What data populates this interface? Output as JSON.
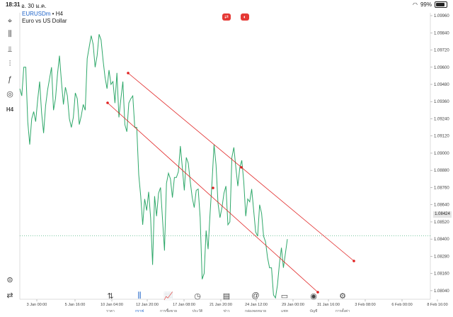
{
  "status": {
    "time": "18:31",
    "date": "อ. 30 ม.ค.",
    "battery": "99%"
  },
  "symbol": {
    "name": "EURUSDm",
    "timeframe": "H4",
    "description": "Euro vs US Dollar"
  },
  "toolbar": {
    "items": [
      {
        "name": "crosshair",
        "glyph": "⌖"
      },
      {
        "name": "chart-type",
        "glyph": "⫼"
      },
      {
        "name": "indicators",
        "glyph": "⫫"
      },
      {
        "name": "settings-sliders",
        "glyph": "⫶"
      },
      {
        "name": "function",
        "glyph": "ƒ"
      },
      {
        "name": "objects",
        "glyph": "◎"
      },
      {
        "name": "timeframe",
        "glyph": "H4"
      }
    ]
  },
  "top_icons": [
    {
      "name": "trade-panel-icon",
      "color": "#e53935",
      "glyph": "⇄"
    },
    {
      "name": "one-click-icon",
      "color": "#e53935",
      "glyph": "◐"
    }
  ],
  "chart_data": {
    "type": "line",
    "title": "",
    "x_ticks": [
      "3 Jan 00:00",
      "5 Jan 16:00",
      "10 Jan 04:00",
      "12 Jan 20:00",
      "17 Jan 08:00",
      "21 Jan 20:00",
      "24 Jan 12:00",
      "29 Jan 00:00",
      "31 Jan 16:00",
      "3 Feb 08:00",
      "6 Feb 00:00",
      "8 Feb 16:00"
    ],
    "y_ticks": [
      "1.09960",
      "1.09840",
      "1.09720",
      "1.09600",
      "1.09480",
      "1.09360",
      "1.09240",
      "1.09120",
      "1.09000",
      "1.08880",
      "1.08760",
      "1.08640",
      "1.08520",
      "1.08400",
      "1.08280",
      "1.08160",
      "1.08040"
    ],
    "ylim": [
      1.0798,
      1.0998
    ],
    "current_price": "1.08424",
    "series": [
      {
        "values": [
          1.0945,
          1.094,
          1.096,
          1.096,
          1.0922,
          1.0906,
          1.0924,
          1.0929,
          1.0922,
          1.0937,
          1.095,
          1.0928,
          1.0914,
          1.0933,
          1.0944,
          1.0952,
          1.096,
          1.093,
          1.0938,
          1.0955,
          1.0968,
          1.095,
          1.0934,
          1.0946,
          1.094,
          1.0924,
          1.0918,
          1.0925,
          1.0942,
          1.0938,
          1.092,
          1.0926,
          1.0934,
          1.093,
          1.0966,
          1.0974,
          1.0982,
          1.0976,
          1.096,
          1.0968,
          1.0983,
          1.0979,
          1.0965,
          1.0953,
          1.0945,
          1.0958,
          1.0948,
          1.095,
          1.0935,
          1.0956,
          1.0925,
          1.0938,
          1.095,
          1.092,
          1.0915,
          1.0935,
          1.0938,
          1.094,
          1.0918,
          1.0918,
          1.0885,
          1.087,
          1.085,
          1.0868,
          1.086,
          1.0873,
          1.0855,
          1.0822,
          1.087,
          1.0856,
          1.0872,
          1.0876,
          1.0854,
          1.0832,
          1.0879,
          1.0886,
          1.0882,
          1.0869,
          1.0883,
          1.0883,
          1.0887,
          1.0905,
          1.089,
          1.0874,
          1.0897,
          1.0893,
          1.088,
          1.0869,
          1.0862,
          1.0874,
          1.0875,
          1.0855,
          1.0812,
          1.0816,
          1.0846,
          1.0833,
          1.0858,
          1.088,
          1.0906,
          1.0892,
          1.0865,
          1.0855,
          1.0862,
          1.0872,
          1.0877,
          1.085,
          1.0852,
          1.0897,
          1.0904,
          1.089,
          1.0877,
          1.089,
          1.0895,
          1.088,
          1.0856,
          1.0868,
          1.0866,
          1.0875,
          1.086,
          1.0845,
          1.0842,
          1.0864,
          1.0858,
          1.0842,
          1.0838,
          1.0827,
          1.082,
          1.082,
          1.0801,
          1.0799,
          1.0808,
          1.0823,
          1.0834,
          1.082,
          1.083,
          1.084
        ]
      }
    ],
    "trendlines": [
      {
        "color": "#e02020",
        "points": [
          [
            19,
            1.0954
          ],
          [
            112,
            1.0816
          ]
        ]
      },
      {
        "color": "#e02020",
        "points": [
          [
            9,
            1.0932
          ],
          [
            98,
            1.08
          ]
        ]
      }
    ]
  },
  "tabs": [
    {
      "label": "ราคา",
      "glyph": "⇅",
      "active": false
    },
    {
      "label": "กราฟ",
      "glyph": "⫼",
      "active": true
    },
    {
      "label": "การซื้อขาย",
      "glyph": "📈",
      "active": false
    },
    {
      "label": "ประวัติ",
      "glyph": "◷",
      "active": false
    },
    {
      "label": "ข่าว",
      "glyph": "▤",
      "active": false
    },
    {
      "label": "กล่องจดหมาย",
      "glyph": "@",
      "active": false
    },
    {
      "label": "แชท",
      "glyph": "▭",
      "active": false
    },
    {
      "label": "บัญชี",
      "glyph": "◉",
      "active": false
    },
    {
      "label": "การตั้งค่า",
      "glyph": "⚙",
      "active": false
    }
  ]
}
